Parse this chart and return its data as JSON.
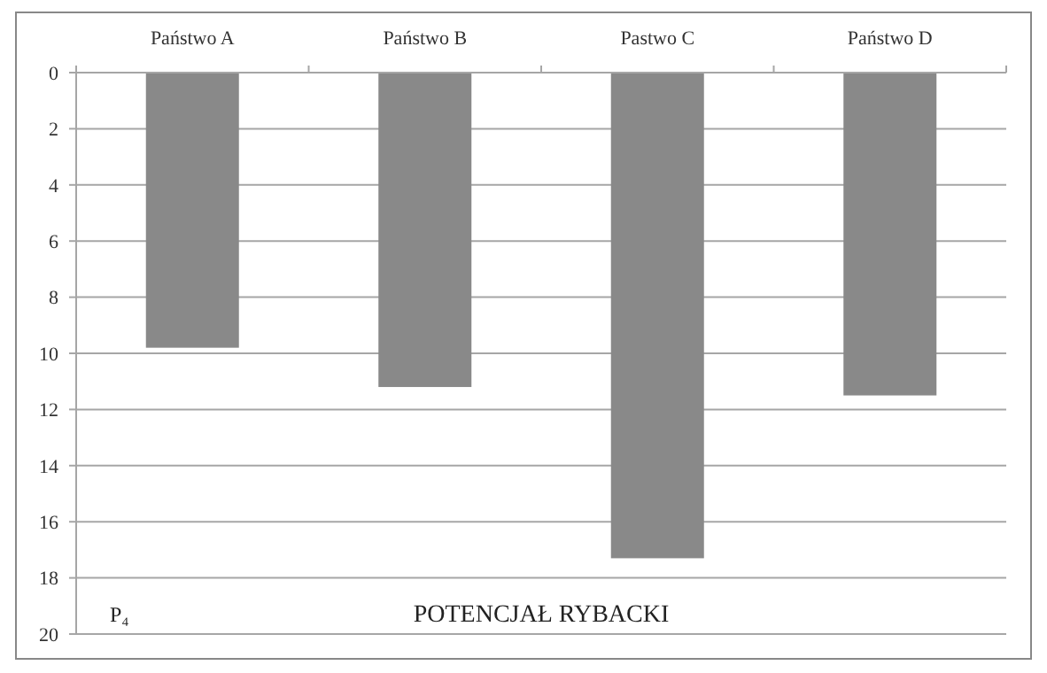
{
  "chart_data": {
    "type": "bar",
    "title": "POTENCJAŁ RYBACKI",
    "annotations": [
      "P₄"
    ],
    "categories": [
      "Państwo A",
      "Państwo B",
      "Pastwo C",
      "Państwo D"
    ],
    "values": [
      9.8,
      11.2,
      17.3,
      11.5
    ],
    "color": "#898989",
    "ylim": [
      20,
      0
    ],
    "yticks": [
      0,
      2,
      4,
      6,
      8,
      10,
      12,
      14,
      16,
      18,
      20
    ],
    "grid": "y"
  }
}
